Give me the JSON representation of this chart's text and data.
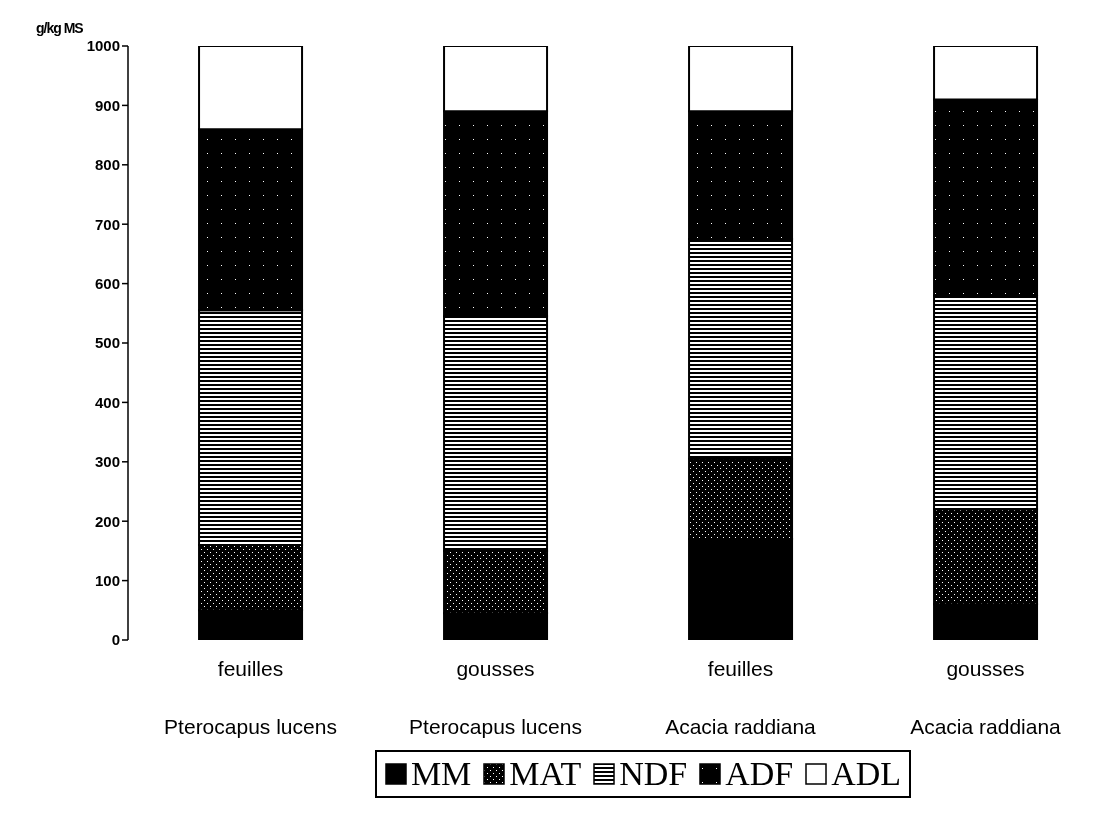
{
  "chart_data": {
    "type": "bar",
    "stacked": true,
    "ylabel": "g/kg MS",
    "categories": [
      "feuilles\nPterocapus lucens",
      "gousses\nPterocapus lucens",
      "feuilles\nAcacia raddiana",
      "gousses\nAcacia raddiana"
    ],
    "series": [
      {
        "name": "MM",
        "color": "#000000",
        "values": [
          50,
          45,
          170,
          60
        ]
      },
      {
        "name": "MAT",
        "color": "#000000",
        "values": [
          110,
          105,
          135,
          160
        ]
      },
      {
        "name": "NDF",
        "color": "#000000",
        "values": [
          395,
          395,
          370,
          360
        ]
      },
      {
        "name": "ADF",
        "color": "#000000",
        "values": [
          305,
          345,
          215,
          330
        ]
      },
      {
        "name": "ADL",
        "color": "#ffffff",
        "values": [
          140,
          110,
          110,
          90
        ]
      }
    ],
    "ylim": [
      0,
      1000
    ],
    "yticks": [
      0,
      100,
      200,
      300,
      400,
      500,
      600,
      700,
      800,
      900,
      1000
    ],
    "grid": false,
    "legend": "bottom"
  }
}
